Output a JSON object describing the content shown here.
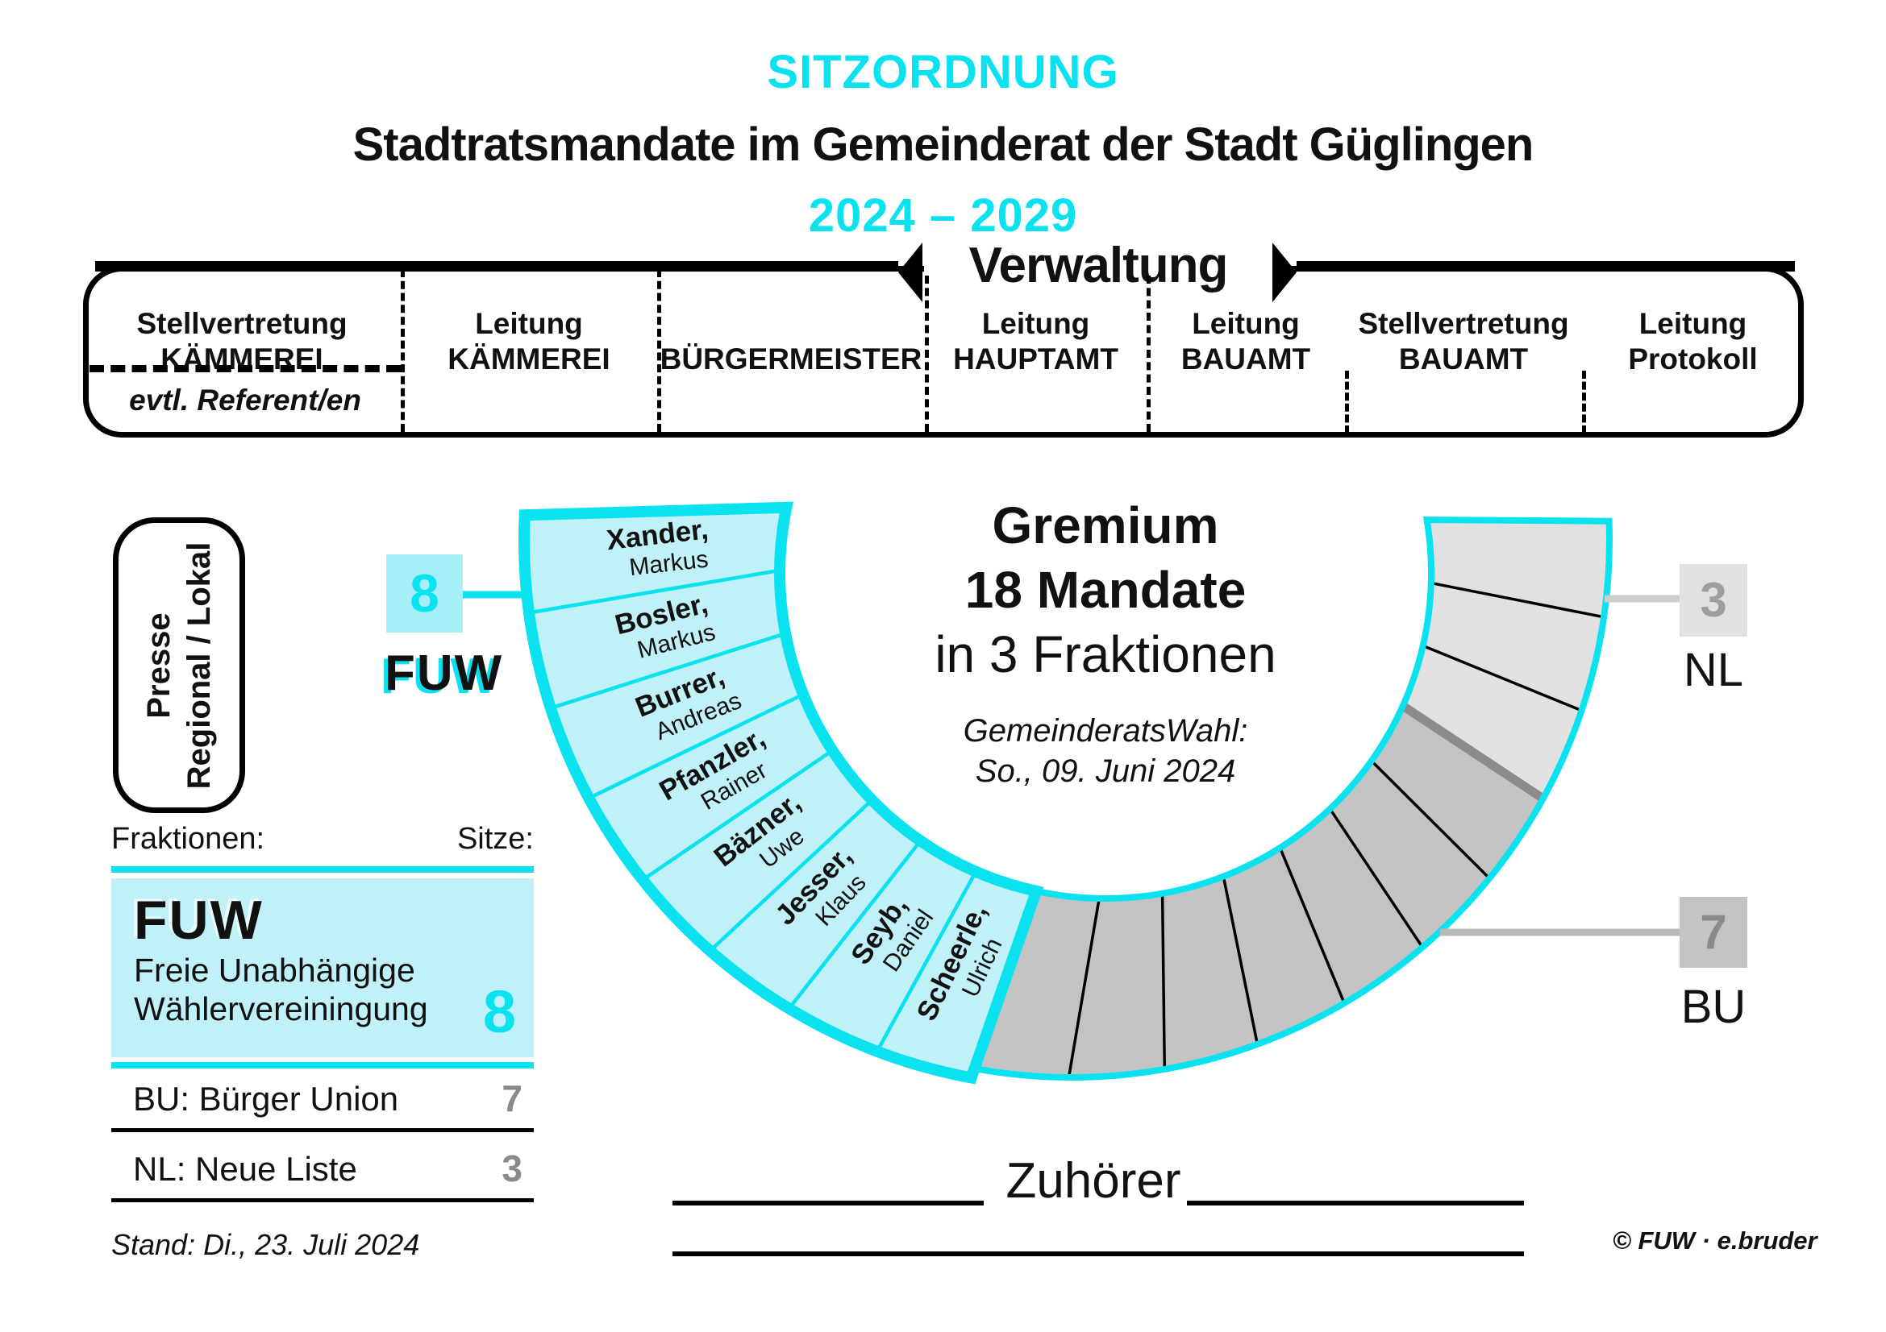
{
  "titles": {
    "kicker": "SITZORDNUNG",
    "main": "Stadtratsmandate im Gemeinderat der Stadt Güglingen",
    "years": "2024 – 2029"
  },
  "verwaltung": {
    "title": "Verwaltung",
    "sections": [
      {
        "line1": "Stellvertretung",
        "line2": "KÄMMEREI"
      },
      {
        "line1": "Leitung",
        "line2": "KÄMMEREI"
      },
      {
        "line1": "",
        "line2": "BÜRGERMEISTER"
      },
      {
        "line1": "Leitung",
        "line2": "HAUPTAMT"
      },
      {
        "line1": "Leitung",
        "line2": "BAUAMT"
      },
      {
        "line1": "Stellvertretung",
        "line2": "BAUAMT"
      },
      {
        "line1": "Leitung",
        "line2": "Protokoll"
      }
    ],
    "note": "evtl. Referent/en"
  },
  "presse": {
    "line1": "Presse",
    "line2": "Regional / Lokal"
  },
  "gremium": {
    "line1": "Gremium",
    "line2": "18 Mandate",
    "line3": "in 3 Fraktionen",
    "note1": "GemeinderatsWahl:",
    "note2": "So., 09. Juni 2024"
  },
  "fractions": {
    "fuw": {
      "abbr": "FUW",
      "seats": "8",
      "members": [
        {
          "last": "Xander,",
          "first": "Markus"
        },
        {
          "last": "Bosler,",
          "first": "Markus"
        },
        {
          "last": "Burrer,",
          "first": "Andreas"
        },
        {
          "last": "Pfanzler,",
          "first": "Rainer"
        },
        {
          "last": "Bäzner,",
          "first": "Uwe"
        },
        {
          "last": "Jesser,",
          "first": "Klaus"
        },
        {
          "last": "Seyb,",
          "first": "Daniel"
        },
        {
          "last": "Scheerle,",
          "first": "Ulrich"
        }
      ]
    },
    "bu": {
      "abbr": "BU",
      "seats": "7"
    },
    "nl": {
      "abbr": "NL",
      "seats": "3"
    }
  },
  "legend": {
    "col1": "Fraktionen:",
    "col2": "Sitze:",
    "fuw_full1": "Freie Unabhängige",
    "fuw_full2": "Wählervereiningung",
    "bu_row": "BU: Bürger Union",
    "nl_row": "NL: Neue Liste",
    "stand": "Stand: Di., 23. Juli 2024"
  },
  "audience": "Zuhörer",
  "copyright": "© FUW · e.bruder",
  "colors": {
    "cyan": "#0BE2F0",
    "cyan_light": "#C0F1F8",
    "cyan_box": "#A6EFF6",
    "bu_fill": "#C3C3C3",
    "nl_fill": "#E1E1E1",
    "nl_bu_divider": "#8B8B8B",
    "gray_text_bu": "#8A8A8A",
    "gray_text_nl": "#9E9E9E",
    "connector_nl": "#CDCDCD",
    "connector_bu": "#B9B9B9"
  }
}
